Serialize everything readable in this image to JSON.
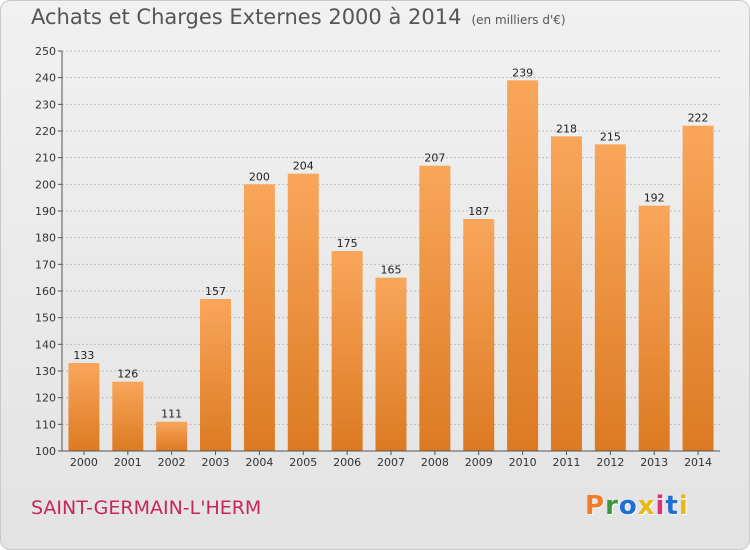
{
  "header": {
    "title": "Achats et Charges Externes 2000 à 2014",
    "subtitle": "(en milliers d'€)"
  },
  "footer": {
    "place": "SAINT-GERMAIN-L'HERM",
    "brand": "Proxiti",
    "brand_colors": [
      "#f07d2a",
      "#3a9a3a",
      "#1d6fd4",
      "#e8b912",
      "#d9317a",
      "#1d6fd4",
      "#e8b912"
    ]
  },
  "colors": {
    "bar_light": "#f9a65b",
    "bar_dark": "#dc7a22",
    "grid": "#bdbdbd",
    "title": "#555555",
    "place": "#c8255f"
  },
  "chart_data": {
    "type": "bar",
    "title": "Achats et Charges Externes 2000 à 2014",
    "subtitle": "(en milliers d'€)",
    "categories": [
      "2000",
      "2001",
      "2002",
      "2003",
      "2004",
      "2005",
      "2006",
      "2007",
      "2008",
      "2009",
      "2010",
      "2011",
      "2012",
      "2013",
      "2014"
    ],
    "values": [
      133,
      126,
      111,
      157,
      200,
      204,
      175,
      165,
      207,
      187,
      239,
      218,
      215,
      192,
      222
    ],
    "ylim": [
      100,
      250
    ],
    "yticks": [
      100,
      110,
      120,
      130,
      140,
      150,
      160,
      170,
      180,
      190,
      200,
      210,
      220,
      230,
      240,
      250
    ],
    "grid": true,
    "data_labels": true
  }
}
